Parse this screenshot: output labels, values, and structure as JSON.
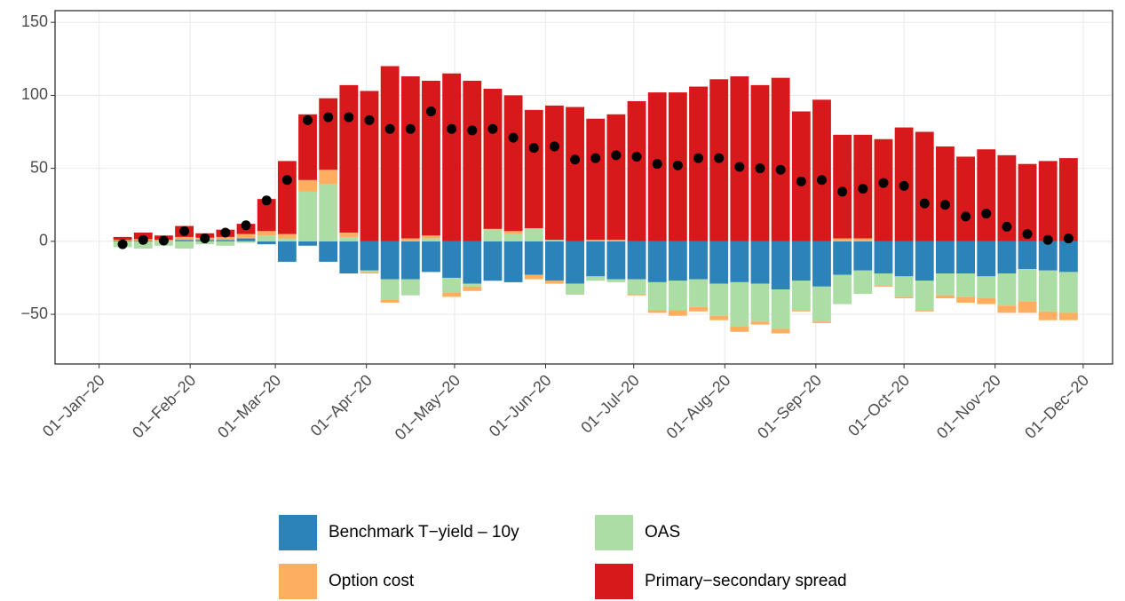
{
  "chart_data": {
    "type": "bar",
    "x": [
      "2020-01-09",
      "2020-01-16",
      "2020-01-23",
      "2020-01-30",
      "2020-02-06",
      "2020-02-13",
      "2020-02-20",
      "2020-02-27",
      "2020-03-05",
      "2020-03-12",
      "2020-03-19",
      "2020-03-26",
      "2020-04-02",
      "2020-04-09",
      "2020-04-16",
      "2020-04-23",
      "2020-04-30",
      "2020-05-07",
      "2020-05-14",
      "2020-05-21",
      "2020-05-28",
      "2020-06-04",
      "2020-06-11",
      "2020-06-18",
      "2020-06-25",
      "2020-07-02",
      "2020-07-09",
      "2020-07-16",
      "2020-07-23",
      "2020-07-30",
      "2020-08-06",
      "2020-08-13",
      "2020-08-20",
      "2020-08-27",
      "2020-09-03",
      "2020-09-10",
      "2020-09-17",
      "2020-09-24",
      "2020-10-01",
      "2020-10-08",
      "2020-10-15",
      "2020-10-22",
      "2020-10-29",
      "2020-11-05",
      "2020-11-12",
      "2020-11-19",
      "2020-11-26"
    ],
    "series": [
      {
        "name": "Benchmark T−yield – 10y",
        "color": "#2B83BA",
        "values": [
          0.5,
          0.5,
          0,
          1,
          1,
          1,
          2,
          -2,
          -14,
          -3,
          -14,
          -22,
          -20,
          -26,
          -26,
          -21,
          -25,
          -29,
          -27,
          -28,
          -23,
          -27,
          -29,
          -24,
          -26,
          -26,
          -28,
          -27,
          -26,
          -29,
          -28,
          -29,
          -33,
          -27,
          -31,
          -23,
          -20,
          -22,
          -24,
          -27,
          -22,
          -22,
          -24,
          -22,
          -19,
          -20,
          -21
        ]
      },
      {
        "name": "Option cost",
        "color": "#FDAE61",
        "values": [
          0.5,
          1,
          1,
          2,
          1.5,
          2,
          3,
          3,
          3,
          8,
          10,
          3,
          -1,
          -2,
          2,
          2,
          -3,
          -3,
          0.5,
          2,
          -3,
          -2,
          -0.5,
          1,
          1,
          -1,
          -2,
          -4,
          -3,
          -3,
          -4,
          -2,
          -3,
          -1,
          -1,
          2,
          2,
          -1,
          -1,
          -1,
          -2,
          -4,
          -4,
          -5,
          -8,
          -6,
          -5
        ]
      },
      {
        "name": "OAS",
        "color": "#ABDDA4",
        "values": [
          -4,
          -5,
          -3,
          -5,
          -2,
          -3,
          -1,
          4,
          2,
          34,
          39,
          3,
          -1,
          -14,
          -11,
          2,
          -10,
          -2,
          8,
          5,
          9,
          1,
          -7,
          -3,
          -2,
          -10,
          -19,
          -20,
          -19,
          -22,
          -30,
          -26,
          -27,
          -20,
          -24,
          -20,
          -16,
          -8,
          -14,
          -20,
          -15,
          -16,
          -15,
          -22,
          -22,
          -28,
          -28
        ]
      },
      {
        "name": "Primary−secondary spread",
        "color": "#D7191C",
        "values": [
          2,
          4.5,
          3,
          7.5,
          3,
          5,
          7,
          22,
          50,
          45,
          49,
          101,
          103,
          120,
          111,
          106,
          115,
          110,
          96,
          93,
          81,
          92,
          92,
          83,
          86,
          96,
          102,
          102,
          106,
          111,
          113,
          107,
          112,
          89,
          97,
          71,
          71,
          70,
          78,
          75,
          65,
          58,
          63,
          59,
          53,
          55,
          57
        ]
      }
    ],
    "points": {
      "color": "#000000",
      "values": [
        -2,
        1,
        0.5,
        7,
        2,
        6,
        11,
        28,
        42,
        83,
        85,
        85,
        83,
        77,
        77,
        89,
        77,
        76,
        77,
        71,
        64,
        65,
        56,
        57,
        59,
        58,
        53,
        52,
        57,
        57,
        51,
        50,
        49,
        41,
        42,
        34,
        36,
        40,
        38,
        26,
        25,
        17,
        19,
        10,
        5,
        1,
        2
      ]
    },
    "xlim": [
      "2019-12-17",
      "2020-12-11"
    ],
    "xticks": [
      {
        "value": "2020-01-01",
        "label": "01−Jan−20"
      },
      {
        "value": "2020-02-01",
        "label": "01−Feb−20"
      },
      {
        "value": "2020-03-01",
        "label": "01−Mar−20"
      },
      {
        "value": "2020-04-01",
        "label": "01−Apr−20"
      },
      {
        "value": "2020-05-01",
        "label": "01−May−20"
      },
      {
        "value": "2020-06-01",
        "label": "01−Jun−20"
      },
      {
        "value": "2020-07-01",
        "label": "01−Jul−20"
      },
      {
        "value": "2020-08-01",
        "label": "01−Aug−20"
      },
      {
        "value": "2020-09-01",
        "label": "01−Sep−20"
      },
      {
        "value": "2020-10-01",
        "label": "01−Oct−20"
      },
      {
        "value": "2020-11-01",
        "label": "01−Nov−20"
      },
      {
        "value": "2020-12-01",
        "label": "01−Dec−20"
      }
    ],
    "ylim": [
      -84,
      158
    ],
    "yticks": [
      {
        "value": -50,
        "label": "−50"
      },
      0,
      50,
      100,
      150
    ],
    "grid": true
  }
}
